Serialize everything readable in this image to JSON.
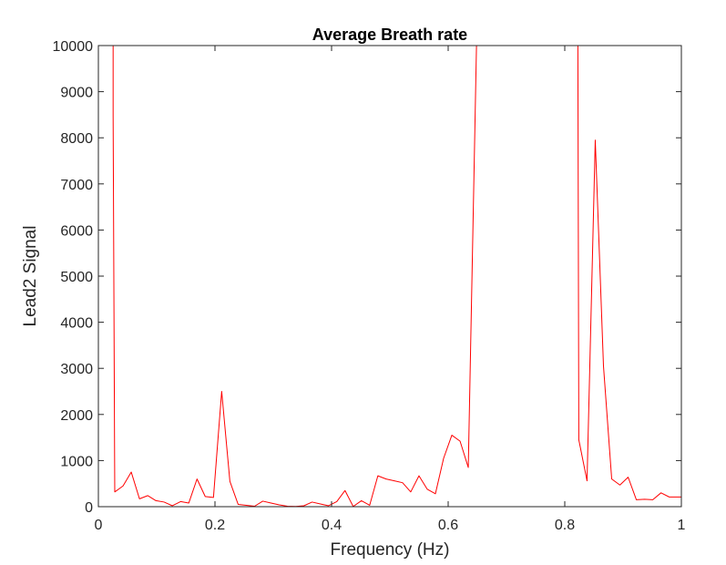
{
  "chart_data": {
    "type": "line",
    "title": "Average Breath rate",
    "xlabel": "Frequency (Hz)",
    "ylabel": "Lead2 Signal",
    "xlim": [
      0,
      1
    ],
    "ylim": [
      0,
      10000
    ],
    "xticks": [
      0,
      0.2,
      0.4,
      0.6,
      0.8,
      1
    ],
    "xtick_labels": [
      "0",
      "0.2",
      "0.4",
      "0.6",
      "0.8",
      "1"
    ],
    "yticks": [
      0,
      1000,
      2000,
      3000,
      4000,
      5000,
      6000,
      7000,
      8000,
      9000,
      10000
    ],
    "ytick_labels": [
      "0",
      "1000",
      "2000",
      "3000",
      "4000",
      "5000",
      "6000",
      "7000",
      "8000",
      "9000",
      "10000"
    ],
    "grid": false,
    "box": true,
    "line_color": "#ff0000",
    "axis_color": "#262626",
    "series": [
      {
        "x": [
          0.0253,
          0.0253,
          0.0281,
          0.0423,
          0.0564,
          0.0705,
          0.0846,
          0.0987,
          0.1128,
          0.1269,
          0.141,
          0.1551,
          0.1692,
          0.1833,
          0.1974,
          0.2115,
          0.2256,
          0.2397,
          0.2538,
          0.2679,
          0.282,
          0.2961,
          0.3102,
          0.3243,
          0.3384,
          0.3525,
          0.3666,
          0.3807,
          0.3948,
          0.4089,
          0.423,
          0.4371,
          0.4512,
          0.4653,
          0.4794,
          0.4935,
          0.5076,
          0.5217,
          0.5358,
          0.5499,
          0.564,
          0.5781,
          0.5922,
          0.6063,
          0.6204,
          0.6345,
          0.6486,
          0.6627,
          0.6768,
          0.6909,
          0.705,
          0.7191,
          0.7332,
          0.7473,
          0.7614,
          0.7755,
          0.7896,
          0.8037,
          0.8178,
          0.8225,
          0.8241,
          0.8382,
          0.8523,
          0.8664,
          0.8805,
          0.8946,
          0.9087,
          0.9228,
          0.9369,
          0.951,
          0.9651,
          0.9792,
          0.9933,
          1.0
        ],
        "y": [
          10000,
          8500,
          320,
          450,
          750,
          170,
          240,
          130,
          100,
          20,
          110,
          80,
          600,
          220,
          200,
          2500,
          550,
          50,
          30,
          10,
          120,
          80,
          40,
          10,
          5,
          20,
          100,
          60,
          20,
          110,
          350,
          5,
          130,
          30,
          670,
          600,
          560,
          520,
          320,
          670,
          380,
          280,
          1050,
          1550,
          1420,
          850,
          10000,
          10000,
          10000,
          10000,
          10000,
          10000,
          10000,
          10000,
          10000,
          10000,
          10000,
          10000,
          10000,
          10000,
          1450,
          560,
          7950,
          3050,
          600,
          470,
          640,
          150,
          160,
          150,
          300,
          210,
          210,
          210
        ]
      }
    ]
  }
}
